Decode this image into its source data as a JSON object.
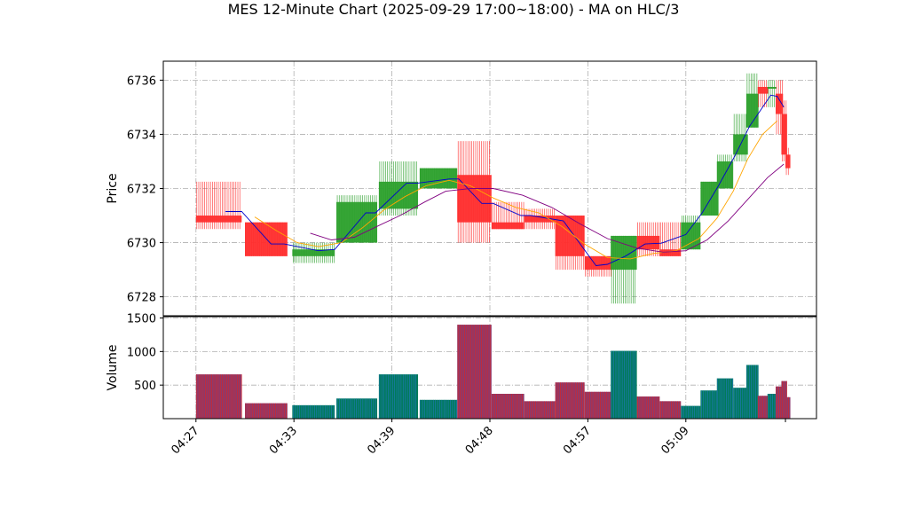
{
  "chart_data": {
    "type": "candlestick",
    "title": "MES 12-Minute Chart (2025-09-29 17:00~18:00) - MA on HLC/3",
    "ylabel_price": "Price",
    "ylabel_volume": "Volume",
    "price_ylim": [
      6727.3,
      6736.7
    ],
    "volume_ylim": [
      0,
      1520
    ],
    "price_ticks": [
      6728,
      6730,
      6732,
      6734,
      6736
    ],
    "volume_ticks": [
      500,
      1000,
      1500
    ],
    "x_ticks": [
      {
        "t": 0,
        "label": "04:27"
      },
      {
        "t": 6,
        "label": "04:33"
      },
      {
        "t": 12,
        "label": "04:39"
      },
      {
        "t": 18,
        "label": "04:48"
      },
      {
        "t": 24,
        "label": "04:57"
      },
      {
        "t": 30,
        "label": "05:09"
      }
    ],
    "x_range": [
      -2,
      38
    ],
    "grid": true,
    "candles": [
      {
        "t": 0,
        "w": 2.8,
        "o": 6731.0,
        "h": 6732.25,
        "l": 6730.5,
        "c": 6730.75,
        "v": 660
      },
      {
        "t": 3,
        "w": 2.6,
        "o": 6730.75,
        "h": 6730.75,
        "l": 6729.5,
        "c": 6729.5,
        "v": 230
      },
      {
        "t": 5.9,
        "w": 2.6,
        "o": 6729.5,
        "h": 6730.0,
        "l": 6729.25,
        "c": 6729.75,
        "v": 200
      },
      {
        "t": 8.6,
        "w": 2.5,
        "o": 6730.0,
        "h": 6731.75,
        "l": 6730.0,
        "c": 6731.5,
        "v": 300
      },
      {
        "t": 11.2,
        "w": 2.4,
        "o": 6731.25,
        "h": 6733.0,
        "l": 6731.0,
        "c": 6732.25,
        "v": 660
      },
      {
        "t": 13.7,
        "w": 2.3,
        "o": 6732.0,
        "h": 6732.75,
        "l": 6732.0,
        "c": 6732.75,
        "v": 280
      },
      {
        "t": 16.0,
        "w": 2.1,
        "o": 6732.5,
        "h": 6733.75,
        "l": 6730.0,
        "c": 6730.75,
        "v": 1400
      },
      {
        "t": 18.1,
        "w": 2.0,
        "o": 6730.75,
        "h": 6731.5,
        "l": 6730.5,
        "c": 6730.5,
        "v": 370
      },
      {
        "t": 20.1,
        "w": 1.9,
        "o": 6731.0,
        "h": 6731.25,
        "l": 6730.5,
        "c": 6730.75,
        "v": 260
      },
      {
        "t": 22.0,
        "w": 1.8,
        "o": 6731.0,
        "h": 6731.0,
        "l": 6729.0,
        "c": 6729.5,
        "v": 540
      },
      {
        "t": 23.8,
        "w": 1.7,
        "o": 6729.5,
        "h": 6729.5,
        "l": 6728.75,
        "c": 6729.0,
        "v": 400
      },
      {
        "t": 25.4,
        "w": 1.6,
        "o": 6729.0,
        "h": 6730.25,
        "l": 6727.75,
        "c": 6730.25,
        "v": 1010
      },
      {
        "t": 27.0,
        "w": 1.4,
        "o": 6730.25,
        "h": 6730.75,
        "l": 6729.5,
        "c": 6729.75,
        "v": 330
      },
      {
        "t": 28.4,
        "w": 1.3,
        "o": 6729.75,
        "h": 6730.75,
        "l": 6729.5,
        "c": 6729.5,
        "v": 260
      },
      {
        "t": 29.7,
        "w": 1.2,
        "o": 6729.75,
        "h": 6731.0,
        "l": 6729.75,
        "c": 6730.75,
        "v": 190
      },
      {
        "t": 30.9,
        "w": 1.1,
        "o": 6731.0,
        "h": 6732.25,
        "l": 6731.0,
        "c": 6732.25,
        "v": 420
      },
      {
        "t": 31.9,
        "w": 1.0,
        "o": 6732.0,
        "h": 6733.25,
        "l": 6732.0,
        "c": 6733.0,
        "v": 600
      },
      {
        "t": 32.9,
        "w": 0.9,
        "o": 6733.25,
        "h": 6734.75,
        "l": 6733.0,
        "c": 6734.0,
        "v": 460
      },
      {
        "t": 33.7,
        "w": 0.75,
        "o": 6734.25,
        "h": 6736.25,
        "l": 6734.25,
        "c": 6735.5,
        "v": 800
      },
      {
        "t": 34.4,
        "w": 0.65,
        "o": 6735.75,
        "h": 6736.0,
        "l": 6735.0,
        "c": 6735.5,
        "v": 340
      },
      {
        "t": 35.0,
        "w": 0.55,
        "o": 6735.75,
        "h": 6736.0,
        "l": 6735.0,
        "c": 6735.75,
        "v": 370
      },
      {
        "t": 35.5,
        "w": 0.45,
        "o": 6735.5,
        "h": 6736.0,
        "l": 6734.0,
        "c": 6734.75,
        "v": 480
      },
      {
        "t": 35.85,
        "w": 0.35,
        "o": 6734.75,
        "h": 6735.25,
        "l": 6733.0,
        "c": 6733.25,
        "v": 560
      },
      {
        "t": 36.1,
        "w": 0.3,
        "o": 6733.25,
        "h": 6733.5,
        "l": 6732.5,
        "c": 6732.75,
        "v": 320
      }
    ],
    "ma_series": [
      {
        "color": "#0000cc",
        "points": [
          [
            1.8,
            6731.15
          ],
          [
            2.8,
            6731.15
          ],
          [
            4.6,
            6729.95
          ],
          [
            5.4,
            6729.95
          ],
          [
            7.5,
            6729.7
          ],
          [
            8.5,
            6729.75
          ],
          [
            10.4,
            6731.1
          ],
          [
            11.0,
            6731.1
          ],
          [
            12.9,
            6732.2
          ],
          [
            13.6,
            6732.2
          ],
          [
            15.5,
            6732.35
          ],
          [
            16.1,
            6732.35
          ],
          [
            17.5,
            6731.45
          ],
          [
            18.2,
            6731.45
          ],
          [
            19.9,
            6731.0
          ],
          [
            20.5,
            6731.0
          ],
          [
            22.5,
            6730.8
          ],
          [
            24.5,
            6729.15
          ],
          [
            25.2,
            6729.2
          ],
          [
            26.3,
            6729.5
          ],
          [
            27.5,
            6729.95
          ],
          [
            28.5,
            6729.98
          ],
          [
            30.0,
            6730.3
          ],
          [
            31.0,
            6731.1
          ],
          [
            32.0,
            6732.1
          ],
          [
            33.0,
            6733.2
          ],
          [
            33.9,
            6734.3
          ],
          [
            34.7,
            6735.0
          ],
          [
            35.2,
            6735.45
          ],
          [
            35.6,
            6735.4
          ],
          [
            36.0,
            6735.0
          ]
        ]
      },
      {
        "color": "#ffa500",
        "points": [
          [
            3.6,
            6730.95
          ],
          [
            4.9,
            6730.45
          ],
          [
            6.2,
            6730.0
          ],
          [
            7.5,
            6729.85
          ],
          [
            8.9,
            6730.0
          ],
          [
            10.2,
            6730.55
          ],
          [
            11.5,
            6731.2
          ],
          [
            12.8,
            6731.7
          ],
          [
            14.1,
            6732.1
          ],
          [
            15.5,
            6732.3
          ],
          [
            16.8,
            6732.1
          ],
          [
            18.2,
            6731.65
          ],
          [
            19.6,
            6731.3
          ],
          [
            21.0,
            6731.1
          ],
          [
            22.4,
            6730.6
          ],
          [
            23.8,
            6729.95
          ],
          [
            25.2,
            6729.45
          ],
          [
            26.6,
            6729.4
          ],
          [
            28.0,
            6729.6
          ],
          [
            29.4,
            6729.7
          ],
          [
            30.8,
            6730.15
          ],
          [
            31.9,
            6730.9
          ],
          [
            32.9,
            6731.9
          ],
          [
            33.8,
            6733.1
          ],
          [
            34.7,
            6734.0
          ],
          [
            35.6,
            6734.5
          ]
        ]
      },
      {
        "color": "#800080",
        "points": [
          [
            7.0,
            6730.35
          ],
          [
            8.3,
            6730.1
          ],
          [
            9.7,
            6730.2
          ],
          [
            11.1,
            6730.6
          ],
          [
            12.5,
            6731.0
          ],
          [
            14.0,
            6731.5
          ],
          [
            15.3,
            6731.9
          ],
          [
            16.8,
            6732.0
          ],
          [
            18.2,
            6732.0
          ],
          [
            20.0,
            6731.75
          ],
          [
            21.8,
            6731.3
          ],
          [
            23.5,
            6730.7
          ],
          [
            25.2,
            6730.15
          ],
          [
            27.0,
            6729.8
          ],
          [
            28.6,
            6729.65
          ],
          [
            30.0,
            6729.7
          ],
          [
            31.3,
            6730.1
          ],
          [
            32.6,
            6730.8
          ],
          [
            33.8,
            6731.6
          ],
          [
            35.0,
            6732.4
          ],
          [
            36.0,
            6732.9
          ]
        ]
      }
    ]
  }
}
